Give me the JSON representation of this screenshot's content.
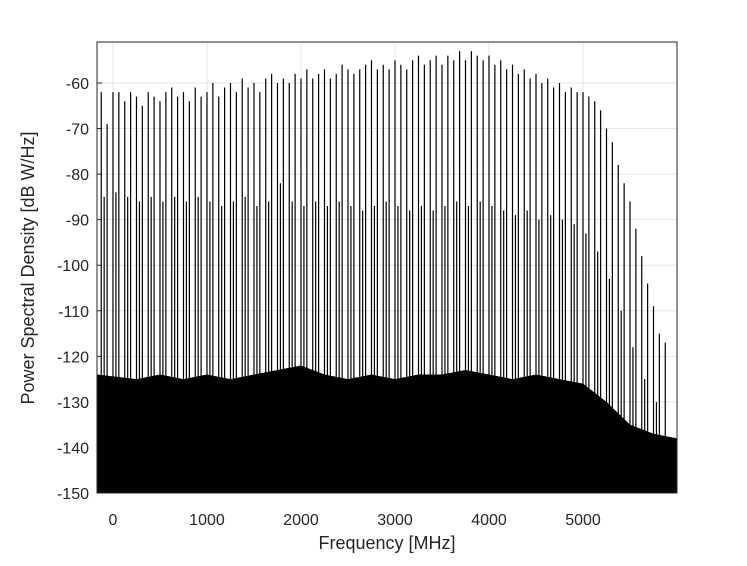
{
  "chart_data": {
    "type": "stem",
    "x_label": "Frequency [MHz]",
    "y_label": "Power Spectral Density [dB W/Hz]",
    "xlim": [
      -170,
      6000
    ],
    "ylim": [
      -150,
      -51
    ],
    "xticks": [
      0,
      1000,
      2000,
      3000,
      4000,
      5000
    ],
    "yticks": [
      -150,
      -140,
      -130,
      -120,
      -110,
      -100,
      -90,
      -80,
      -70,
      -60
    ],
    "grid": true,
    "series": [
      {
        "type": "area",
        "color": "#000000",
        "x": [
          -170,
          250,
          500,
          750,
          1000,
          1250,
          1500,
          1750,
          2000,
          2250,
          2500,
          2750,
          3000,
          3250,
          3500,
          3750,
          4000,
          4250,
          4500,
          4750,
          5000,
          5250,
          5500,
          5750,
          6000
        ],
        "values": [
          -124,
          -125,
          -124,
          -125,
          -124,
          -125,
          -124,
          -123,
          -122,
          -124,
          -125,
          -124,
          -125,
          -124,
          -124,
          -123,
          -124,
          -125,
          -124,
          -125,
          -126,
          -130,
          -135,
          -137,
          -138
        ]
      },
      {
        "type": "stem",
        "color": "#000000",
        "x": [
          -93.75,
          31.25,
          156.25,
          281.25,
          406.25,
          531.25,
          656.25,
          781.25,
          906.25,
          1031.25,
          1156.25,
          1281.25,
          1406.25,
          1531.25,
          1656.25,
          1781.25,
          1906.25,
          2031.25,
          2156.25,
          2281.25,
          2406.25,
          2531.25,
          2656.25,
          2781.25,
          2906.25,
          3031.25,
          3156.25,
          3281.25,
          3406.25,
          3531.25,
          3656.25,
          3781.25,
          3906.25,
          4031.25,
          4156.25,
          4281.25,
          4406.25,
          4531.25,
          4656.25,
          4781.25,
          4906.25,
          5031.25,
          5156.25,
          5281.25,
          5406.25,
          5531.25,
          5656.25,
          5781.25
        ],
        "values": [
          -85,
          -84,
          -85,
          -86,
          -85,
          -86,
          -85,
          -86,
          -85,
          -86,
          -87,
          -86,
          -85,
          -87,
          -86,
          -82,
          -86,
          -87,
          -86,
          -87,
          -86,
          -87,
          -88,
          -87,
          -86,
          -87,
          -88,
          -87,
          -88,
          -87,
          -86,
          -87,
          -86,
          -87,
          -88,
          -89,
          -88,
          -90,
          -89,
          -90,
          -91,
          -93,
          -97,
          -103,
          -110,
          -118,
          -125,
          -130
        ]
      },
      {
        "type": "stem",
        "color": "#000000",
        "x": [
          -125,
          -62.5,
          0,
          62.5,
          125,
          187.5,
          250,
          312.5,
          375,
          437.5,
          500,
          562.5,
          625,
          687.5,
          750,
          812.5,
          875,
          937.5,
          1000,
          1062.5,
          1125,
          1187.5,
          1250,
          1312.5,
          1375,
          1437.5,
          1500,
          1562.5,
          1625,
          1687.5,
          1750,
          1812.5,
          1875,
          1937.5,
          2000,
          2062.5,
          2125,
          2187.5,
          2250,
          2312.5,
          2375,
          2437.5,
          2500,
          2562.5,
          2625,
          2687.5,
          2750,
          2812.5,
          2875,
          2937.5,
          3000,
          3062.5,
          3125,
          3187.5,
          3250,
          3312.5,
          3375,
          3437.5,
          3500,
          3562.5,
          3625,
          3687.5,
          3750,
          3812.5,
          3875,
          3937.5,
          4000,
          4062.5,
          4125,
          4187.5,
          4250,
          4312.5,
          4375,
          4437.5,
          4500,
          4562.5,
          4625,
          4687.5,
          4750,
          4812.5,
          4875,
          4937.5,
          5000,
          5062.5,
          5125,
          5187.5,
          5250,
          5312.5,
          5375,
          5437.5,
          5500,
          5562.5,
          5625,
          5687.5,
          5750,
          5812.5,
          5875
        ],
        "values": [
          -62,
          -69,
          -62,
          -62,
          -64,
          -62,
          -63,
          -65,
          -62,
          -63,
          -64,
          -62,
          -61,
          -63,
          -62,
          -64,
          -61,
          -63,
          -62,
          -60,
          -63,
          -61,
          -60,
          -62,
          -59,
          -61,
          -60,
          -62,
          -59,
          -58,
          -60,
          -59,
          -60,
          -58,
          -59,
          -57,
          -59,
          -58,
          -57,
          -59,
          -58,
          -56,
          -57,
          -58,
          -57,
          -56,
          -55,
          -57,
          -56,
          -57,
          -55,
          -56,
          -57,
          -55,
          -54,
          -56,
          -55,
          -54,
          -56,
          -54,
          -55,
          -53,
          -55,
          -53,
          -54,
          -55,
          -54,
          -56,
          -55,
          -57,
          -56,
          -58,
          -57,
          -59,
          -58,
          -60,
          -59,
          -61,
          -60,
          -62,
          -61,
          -62,
          -62,
          -63,
          -64,
          -66,
          -70,
          -73,
          -78,
          -82,
          -86,
          -92,
          -98,
          -104,
          -109,
          -115,
          -117
        ]
      }
    ]
  }
}
